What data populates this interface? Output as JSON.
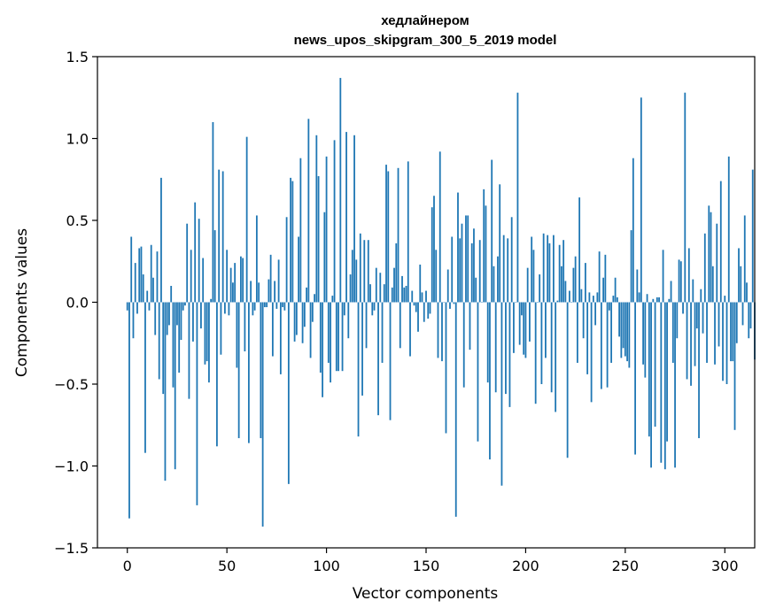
{
  "chart_data": {
    "type": "bar",
    "title_line1": "хедлайнером",
    "title_line2": "news_upos_skipgram_300_5_2019 model",
    "xlabel": "Vector components",
    "ylabel": "Components values",
    "xlim": [
      -15,
      315
    ],
    "ylim": [
      -1.5,
      1.5
    ],
    "x_ticks": [
      0,
      50,
      100,
      150,
      200,
      250,
      300
    ],
    "x_tick_labels": [
      "0",
      "50",
      "100",
      "150",
      "200",
      "250",
      "300"
    ],
    "y_ticks": [
      -1.5,
      -1.0,
      -0.5,
      0.0,
      0.5,
      1.0,
      1.5
    ],
    "y_tick_labels": [
      "−1.5",
      "−1.0",
      "−0.5",
      "0.0",
      "0.5",
      "1.0",
      "1.5"
    ],
    "grid": false,
    "bar_color": "#1f77b4",
    "values": [
      -0.05,
      -1.32,
      0.4,
      -0.22,
      0.24,
      -0.07,
      0.33,
      0.34,
      0.17,
      -0.92,
      0.07,
      -0.05,
      0.35,
      0.15,
      -0.2,
      0.31,
      -0.47,
      0.76,
      -0.56,
      -1.09,
      -0.2,
      -0.14,
      0.1,
      -0.52,
      -1.02,
      -0.14,
      -0.43,
      -0.23,
      -0.05,
      -0.02,
      0.48,
      -0.59,
      0.32,
      -0.24,
      0.61,
      -1.24,
      0.51,
      -0.16,
      0.27,
      -0.38,
      -0.36,
      -0.49,
      0.02,
      1.1,
      0.44,
      -0.88,
      0.81,
      -0.32,
      0.8,
      -0.07,
      0.32,
      -0.08,
      0.21,
      0.12,
      0.24,
      -0.4,
      -0.83,
      0.28,
      0.27,
      -0.3,
      1.01,
      -0.86,
      0.13,
      -0.08,
      -0.05,
      0.53,
      0.12,
      -0.83,
      -1.37,
      -0.03,
      -0.03,
      0.14,
      0.29,
      -0.33,
      0.13,
      -0.04,
      0.26,
      -0.44,
      -0.03,
      -0.05,
      0.52,
      -1.11,
      0.76,
      0.74,
      -0.24,
      -0.2,
      0.4,
      0.88,
      -0.25,
      -0.15,
      0.09,
      1.12,
      -0.34,
      -0.12,
      0.05,
      1.02,
      0.77,
      -0.43,
      -0.58,
      0.55,
      0.89,
      -0.37,
      -0.49,
      0.04,
      0.99,
      -0.42,
      -0.42,
      1.37,
      -0.42,
      -0.08,
      1.04,
      -0.22,
      0.17,
      0.32,
      1.02,
      0.26,
      -0.82,
      0.42,
      -0.57,
      0.38,
      -0.28,
      0.38,
      0.11,
      -0.08,
      -0.05,
      0.21,
      -0.69,
      0.18,
      -0.37,
      0.11,
      0.84,
      0.8,
      -0.72,
      0.09,
      0.21,
      0.36,
      0.82,
      -0.28,
      0.16,
      0.09,
      0.1,
      0.86,
      -0.33,
      0.07,
      -0.02,
      -0.06,
      -0.18,
      0.23,
      0.06,
      -0.12,
      0.07,
      -0.1,
      -0.07,
      0.58,
      0.65,
      0.32,
      -0.34,
      0.92,
      -0.36,
      0.0,
      -0.8,
      0.2,
      -0.04,
      0.4,
      -0.01,
      -1.31,
      0.67,
      0.39,
      0.48,
      -0.52,
      0.53,
      0.53,
      -0.29,
      0.36,
      0.45,
      0.15,
      -0.85,
      0.38,
      0.0,
      0.69,
      0.59,
      -0.49,
      -0.96,
      0.87,
      0.22,
      -0.55,
      0.28,
      0.72,
      -1.12,
      0.41,
      -0.56,
      0.39,
      -0.64,
      0.52,
      -0.31,
      0.0,
      1.28,
      -0.26,
      -0.08,
      -0.32,
      -0.34,
      0.21,
      -0.24,
      0.4,
      0.32,
      -0.62,
      0.0,
      0.17,
      -0.5,
      0.42,
      -0.34,
      0.41,
      0.36,
      -0.55,
      0.41,
      -0.67,
      0.01,
      0.35,
      0.22,
      0.38,
      0.13,
      -0.95,
      0.07,
      0.0,
      0.21,
      0.28,
      -0.37,
      0.64,
      0.08,
      -0.22,
      0.24,
      -0.44,
      0.06,
      -0.61,
      0.04,
      -0.14,
      0.06,
      0.31,
      -0.53,
      0.15,
      0.29,
      -0.52,
      -0.05,
      -0.37,
      0.04,
      0.15,
      0.03,
      -0.21,
      -0.34,
      -0.28,
      -0.33,
      -0.36,
      -0.4,
      0.44,
      0.88,
      -0.93,
      0.2,
      0.06,
      1.25,
      -0.38,
      -0.46,
      0.05,
      -0.82,
      -1.01,
      0.02,
      -0.76,
      0.03,
      0.03,
      -0.98,
      0.32,
      -1.02,
      -0.85,
      0.02,
      0.13,
      -0.37,
      -1.01,
      -0.22,
      0.26,
      0.25,
      -0.07,
      1.28,
      -0.47,
      0.33,
      -0.51,
      0.14,
      -0.39,
      -0.16,
      -0.83,
      0.08,
      -0.19,
      0.42,
      -0.37,
      0.59,
      0.55,
      0.22,
      -0.38,
      0.48,
      -0.27,
      0.74,
      -0.48,
      0.04,
      -0.5,
      0.89,
      -0.36,
      -0.36,
      -0.78,
      -0.25,
      0.33,
      0.22,
      -0.14,
      0.53,
      0.12,
      -0.22,
      -0.16,
      0.81,
      -0.35
    ]
  }
}
